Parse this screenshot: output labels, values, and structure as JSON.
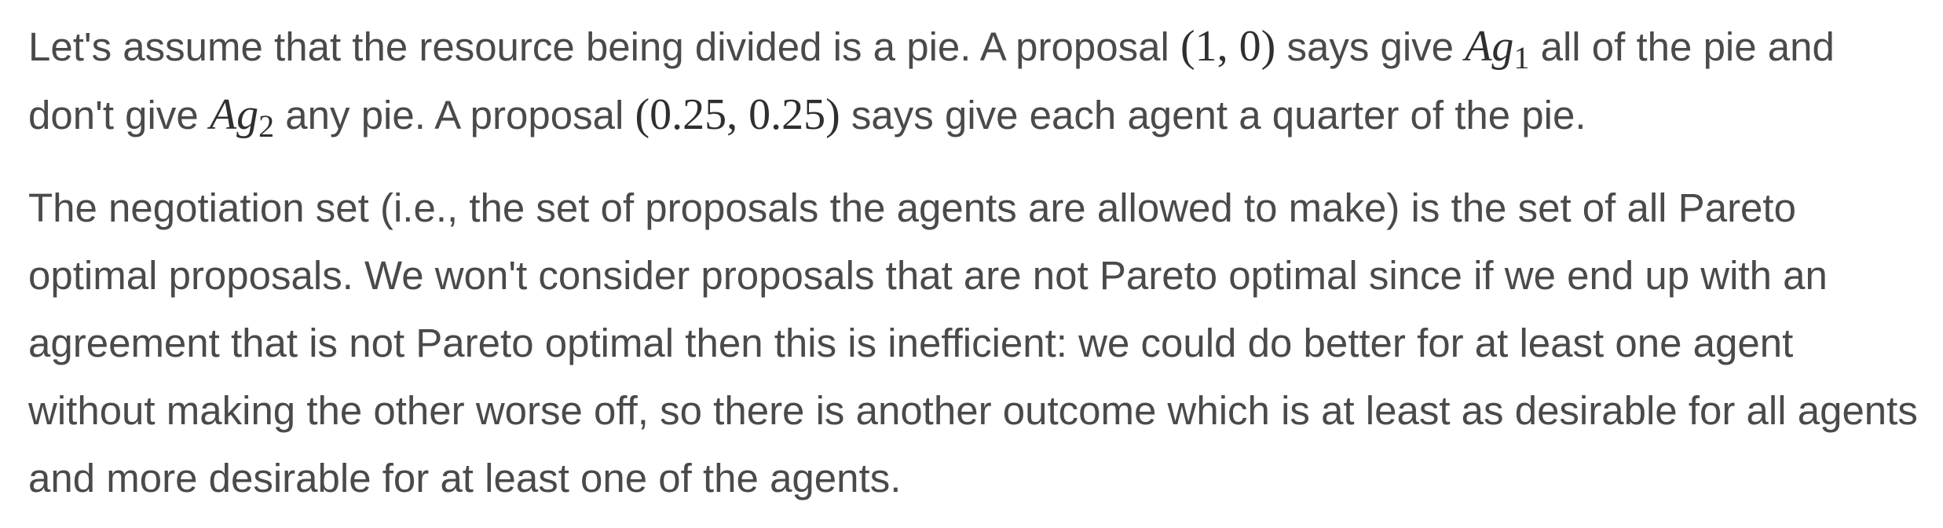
{
  "paragraph1": {
    "s1": "Let's assume that the resource being divided is a pie. A proposal ",
    "m1": "(1, 0)",
    "s2": " says give ",
    "ag1_base": "Ag",
    "ag1_sub": "1",
    "s3": " all of the pie and don't give ",
    "ag2_base": "Ag",
    "ag2_sub": "2",
    "s4": " any pie. A proposal ",
    "m2": "(0.25, 0.25)",
    "s5": " says give each agent a quarter of the pie."
  },
  "paragraph2": {
    "text": "The negotiation set (i.e., the set of proposals the agents are allowed to make) is the set of all Pareto optimal proposals. We won't consider proposals that are not Pareto optimal since if we end up with an agreement that is not Pareto optimal then this is inefficient: we could do better for at least one agent without making the other worse off, so there is another outcome which is at least as desirable for all agents and more desirable for at least one of the agents."
  }
}
